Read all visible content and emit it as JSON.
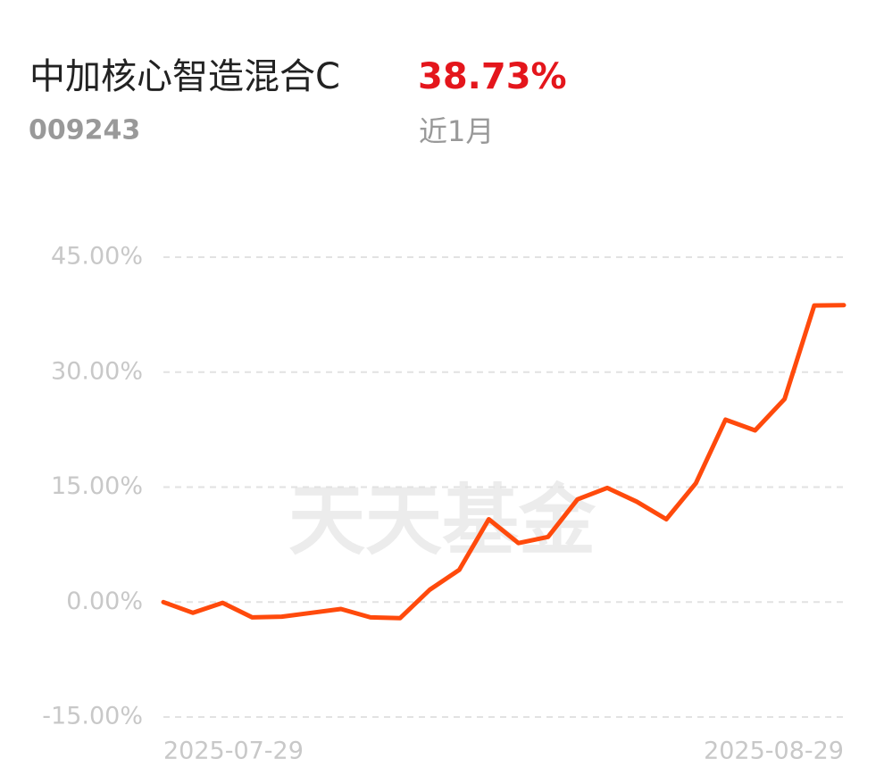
{
  "chart_data": {
    "type": "line",
    "title": "中加核心智造混合C",
    "code": "009243",
    "return_label": "38.73%",
    "period": "近1月",
    "watermark": "天天基金",
    "categories": [
      "2025-07-29",
      null,
      null,
      null,
      null,
      null,
      null,
      null,
      null,
      null,
      null,
      null,
      null,
      null,
      null,
      null,
      null,
      null,
      null,
      null,
      null,
      null,
      null,
      "2025-08-29"
    ],
    "values": [
      0,
      -1.4,
      -0.1,
      -2.0,
      -1.9,
      -1.4,
      -0.9,
      -2.0,
      -2.1,
      1.6,
      4.2,
      10.8,
      7.7,
      8.5,
      13.4,
      14.9,
      13.1,
      10.8,
      15.5,
      23.8,
      22.4,
      26.5,
      38.7,
      38.73
    ],
    "color": "#ff4a0c",
    "ylim": [
      -15,
      45
    ],
    "yticks": [
      {
        "value": 45,
        "label": "45.00%"
      },
      {
        "value": 30,
        "label": "30.00%"
      },
      {
        "value": 15,
        "label": "15.00%"
      },
      {
        "value": 0,
        "label": "0.00%"
      },
      {
        "value": -15,
        "label": "-15.00%"
      }
    ],
    "grid": true
  }
}
